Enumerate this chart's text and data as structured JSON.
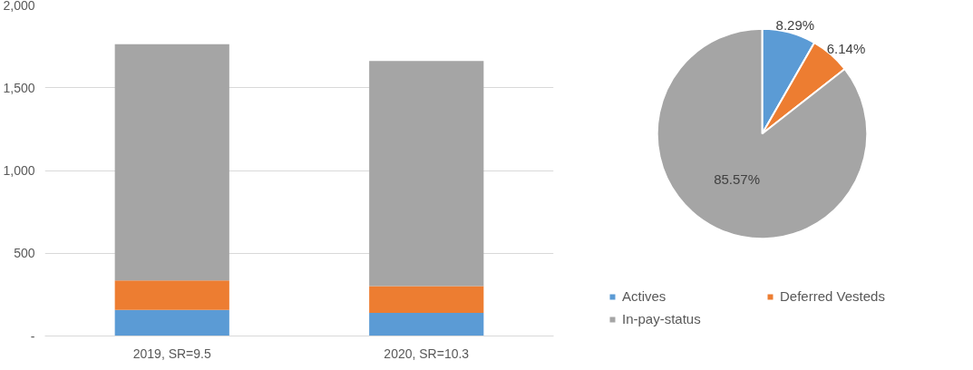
{
  "chart_data": [
    {
      "type": "bar",
      "stacked": true,
      "categories": [
        "2019, SR=9.5",
        "2020, SR=10.3"
      ],
      "series": [
        {
          "color": "#5b9bd5",
          "values": [
            157,
            140
          ]
        },
        {
          "color": "#ed7d31",
          "values": [
            178,
            161
          ]
        },
        {
          "color": "#a5a5a5",
          "values": [
            1428,
            1361
          ]
        }
      ],
      "ylim": [
        0,
        2000
      ],
      "yticks": [
        {
          "value": 0,
          "label": "-"
        },
        {
          "value": 500,
          "label": "500"
        },
        {
          "value": 1000,
          "label": "1,000"
        },
        {
          "value": 1500,
          "label": "1,500"
        },
        {
          "value": 2000,
          "label": "2,000"
        }
      ],
      "grid": "y",
      "legend": false
    },
    {
      "type": "pie",
      "categories": [
        "Actives",
        "Deferred Vesteds",
        "In-pay-status"
      ],
      "values": [
        8.29,
        6.14,
        85.57
      ],
      "colors": [
        "#5b9bd5",
        "#ed7d31",
        "#a5a5a5"
      ],
      "data_labels": true,
      "value_labels": [
        "8.29%",
        "6.14%",
        "85.57%"
      ],
      "legend": "bottom"
    }
  ]
}
